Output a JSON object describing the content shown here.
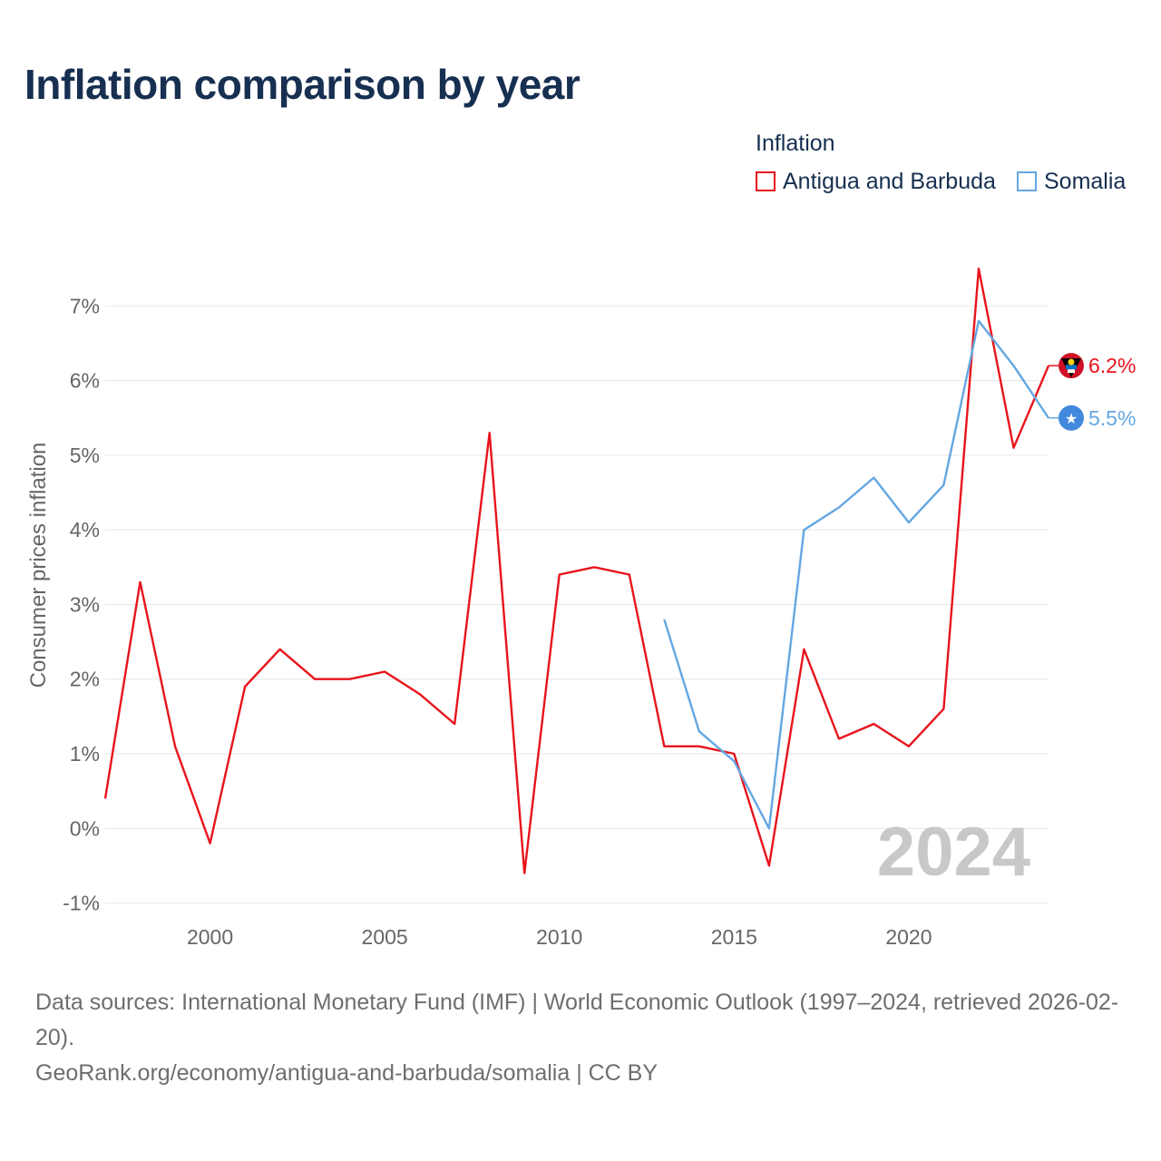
{
  "title": "Inflation comparison by year",
  "legend": {
    "title": "Inflation",
    "items": [
      {
        "label": "Antigua and Barbuda",
        "color": "#e8141c"
      },
      {
        "label": "Somalia",
        "color": "#64a7e2"
      }
    ]
  },
  "chart_data": {
    "type": "line",
    "ylabel": "Consumer prices inflation",
    "xlabel": "",
    "xlim": [
      1997,
      2024
    ],
    "ylim": [
      -1.2,
      7.6
    ],
    "yticks": [
      -1,
      0,
      1,
      2,
      3,
      4,
      5,
      6,
      7
    ],
    "ytick_labels": [
      "-1%",
      "0%",
      "1%",
      "2%",
      "3%",
      "4%",
      "5%",
      "6%",
      "7%"
    ],
    "xticks": [
      2000,
      2005,
      2010,
      2015,
      2020
    ],
    "xtick_labels": [
      "2000",
      "2005",
      "2010",
      "2015",
      "2020"
    ],
    "watermark_year": "2024",
    "grid": true,
    "series": [
      {
        "name": "Antigua and Barbuda",
        "color": "#e8141c",
        "end_label": "6.2%",
        "x": [
          1997,
          1998,
          1999,
          2000,
          2001,
          2002,
          2003,
          2004,
          2005,
          2006,
          2007,
          2008,
          2009,
          2010,
          2011,
          2012,
          2013,
          2014,
          2015,
          2016,
          2017,
          2018,
          2019,
          2020,
          2021,
          2022,
          2023,
          2024
        ],
        "y": [
          0.4,
          3.3,
          1.1,
          -0.2,
          1.9,
          2.4,
          2.0,
          2.0,
          2.1,
          1.8,
          1.4,
          5.3,
          -0.6,
          3.4,
          3.5,
          3.4,
          1.1,
          1.1,
          1.0,
          -0.5,
          2.4,
          1.2,
          1.4,
          1.1,
          1.6,
          7.5,
          5.1,
          6.2
        ]
      },
      {
        "name": "Somalia",
        "color": "#64a7e2",
        "end_label": "5.5%",
        "x": [
          2013,
          2014,
          2015,
          2016,
          2017,
          2018,
          2019,
          2020,
          2021,
          2022,
          2023,
          2024
        ],
        "y": [
          2.8,
          1.3,
          0.9,
          0.0,
          4.0,
          4.3,
          4.7,
          4.1,
          4.6,
          6.8,
          6.2,
          5.5
        ]
      }
    ]
  },
  "footer": {
    "sources": "Data sources: International Monetary Fund (IMF) | World Economic Outlook (1997–2024, retrieved 2026-02-20).",
    "link": "GeoRank.org/economy/antigua-and-barbuda/somalia | CC BY"
  }
}
